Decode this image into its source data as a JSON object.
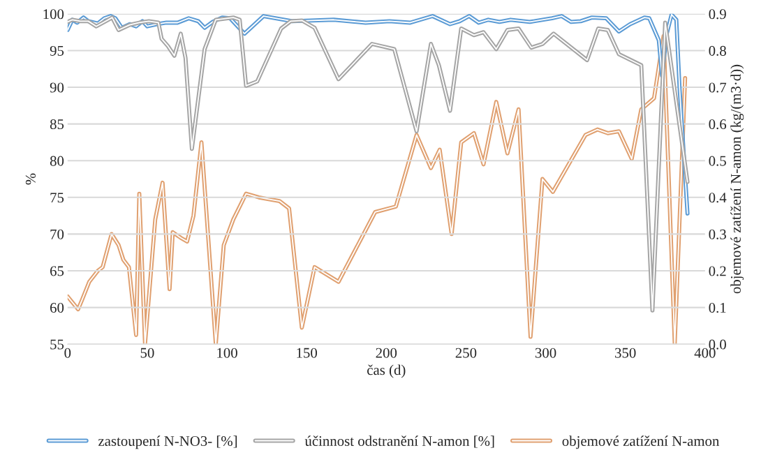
{
  "chart_data": {
    "type": "line",
    "xlabel": "čas (d)",
    "ylabel": "%",
    "y2label": "objemové zatížení N-amon (kg/(m3·d))",
    "xlim": [
      0,
      400
    ],
    "xticks": [
      0,
      50,
      100,
      150,
      200,
      250,
      300,
      350,
      400
    ],
    "ylim": [
      55,
      100
    ],
    "yticks": [
      55,
      60,
      65,
      70,
      75,
      80,
      85,
      90,
      95,
      100
    ],
    "y2lim": [
      0,
      0.9
    ],
    "y2ticks": [
      {
        "value": 0,
        "label": "0.0"
      },
      {
        "value": 0.1,
        "label": "0.1"
      },
      {
        "value": 0.2,
        "label": "0.2"
      },
      {
        "value": 0.3,
        "label": "0.3"
      },
      {
        "value": 0.4,
        "label": "0.4"
      },
      {
        "value": 0.5,
        "label": "0.5"
      },
      {
        "value": 0.6,
        "label": "0.6"
      },
      {
        "value": 0.7,
        "label": "0.7"
      },
      {
        "value": 0.8,
        "label": "0.8"
      },
      {
        "value": 0.9,
        "label": "0.9"
      }
    ],
    "grid": "y",
    "legend": "bottom",
    "line_style": "solid",
    "marker": "none",
    "series": [
      {
        "name": "zastoupení N-NO3- [%]",
        "color": "#5b9bd5",
        "x": [
          0,
          3,
          6,
          10,
          13,
          19,
          23,
          27,
          30,
          34,
          39,
          43,
          47,
          50,
          56,
          62,
          69,
          76,
          82,
          86,
          91,
          97,
          102,
          111,
          116,
          123,
          141,
          167,
          187,
          202,
          215,
          229,
          240,
          246,
          252,
          258,
          264,
          271,
          278,
          290,
          304,
          310,
          316,
          322,
          329,
          338,
          346,
          353,
          362,
          365,
          371,
          373,
          376,
          379,
          382,
          384,
          389
        ],
        "values": [
          97.8,
          99.2,
          98.8,
          99.5,
          99,
          98.7,
          99.4,
          99.7,
          99.4,
          98.1,
          98.6,
          98.3,
          99,
          98.3,
          98.6,
          98.8,
          98.8,
          99.4,
          99,
          98.1,
          98.9,
          99.5,
          99.4,
          97.3,
          98.3,
          99.7,
          99,
          99.2,
          98.8,
          99,
          98.8,
          99.7,
          98.6,
          99,
          99.7,
          98.8,
          99.2,
          98.9,
          99.2,
          98.9,
          99.4,
          99.7,
          98.9,
          99,
          99.5,
          99.4,
          97.6,
          98.6,
          99.5,
          99.4,
          96.4,
          91.6,
          97.3,
          99.9,
          99.2,
          90,
          72.8
        ]
      },
      {
        "name": "účinnost odstranění N-amon [%]",
        "color": "#a5a5a5",
        "x": [
          0,
          3,
          8,
          13,
          18,
          23,
          28,
          32,
          39,
          45,
          51,
          57,
          59,
          63,
          67,
          71,
          74,
          78,
          86,
          93,
          104,
          108,
          112,
          119,
          134,
          140,
          147,
          155,
          170,
          191,
          205,
          219,
          228,
          233,
          240,
          247,
          255,
          261,
          269,
          276,
          283,
          291,
          298,
          305,
          326,
          333,
          339,
          346,
          360,
          367,
          375,
          389
        ],
        "values": [
          98.9,
          99.2,
          99,
          99,
          98.3,
          98.9,
          99.5,
          97.8,
          98.5,
          98.8,
          99,
          98.8,
          96.6,
          95.6,
          94.3,
          97.3,
          94,
          81.6,
          95.2,
          99.2,
          99.5,
          99.2,
          90.2,
          90.8,
          98,
          99,
          99.1,
          98.1,
          91.1,
          95.9,
          95.2,
          84,
          95.9,
          93,
          86.8,
          98,
          97.1,
          97.5,
          95.2,
          97.8,
          98,
          95.4,
          95.9,
          97.3,
          93.7,
          98,
          97.8,
          94.5,
          93,
          59.6,
          98.8,
          77.1
        ]
      },
      {
        "name": "objemové zatížení N-amon",
        "color": "#e0a070",
        "axis": "y2",
        "x": [
          0,
          6.6,
          9,
          13.6,
          19,
          22,
          27.6,
          32,
          35,
          38.5,
          43,
          45,
          48.6,
          55,
          59.6,
          64,
          66,
          71,
          75,
          79,
          84,
          93,
          98,
          104,
          112,
          120,
          133,
          139,
          147,
          155,
          170,
          193,
          206,
          219,
          228,
          233.5,
          241,
          247,
          255,
          261,
          269,
          276,
          283,
          290.5,
          298,
          304.5,
          325,
          332.5,
          339,
          346,
          354,
          360,
          368,
          374,
          381,
          387.5
        ],
        "values": [
          0.13,
          0.095,
          0.12,
          0.17,
          0.2,
          0.21,
          0.3,
          0.27,
          0.23,
          0.21,
          0.025,
          0.41,
          0,
          0.34,
          0.44,
          0.15,
          0.305,
          0.29,
          0.28,
          0.35,
          0.55,
          0,
          0.27,
          0.34,
          0.41,
          0.4,
          0.39,
          0.37,
          0.045,
          0.21,
          0.17,
          0.36,
          0.375,
          0.57,
          0.48,
          0.53,
          0.3,
          0.55,
          0.575,
          0.49,
          0.66,
          0.52,
          0.64,
          0.02,
          0.45,
          0.415,
          0.57,
          0.585,
          0.575,
          0.58,
          0.505,
          0.64,
          0.67,
          0.84,
          0,
          0.725
        ]
      }
    ]
  }
}
